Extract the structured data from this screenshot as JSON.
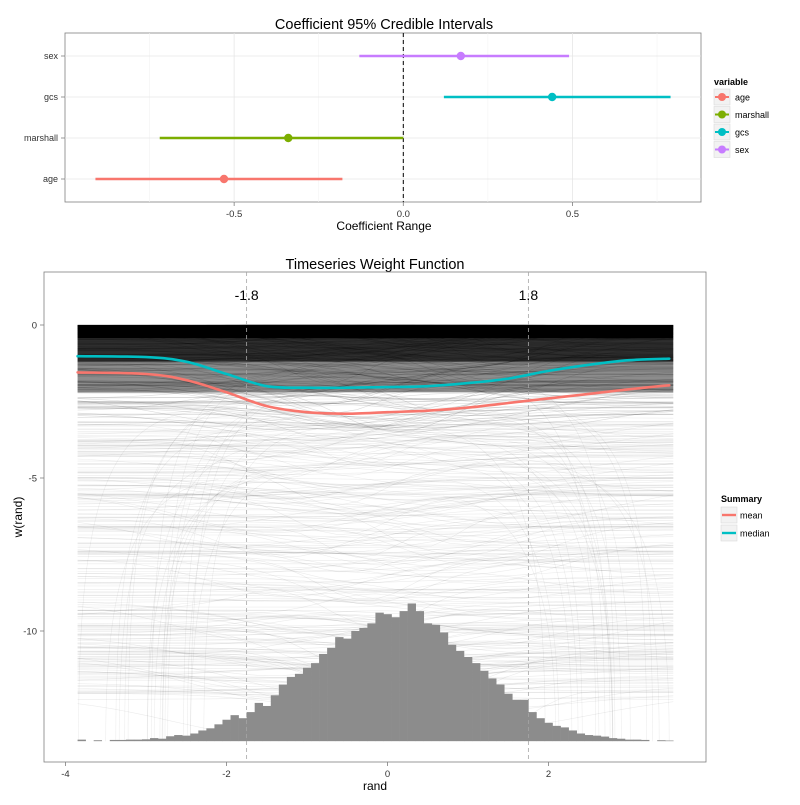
{
  "charts": [
    {
      "type": "errorbar",
      "title": "Coefficient 95% Credible Intervals",
      "xlabel": "Coefficient Range",
      "ylabel": "",
      "xlim": [
        -1.0,
        0.88
      ],
      "xticks": [
        -0.5,
        0.0,
        0.5
      ],
      "xtick_labels": [
        "-0.5",
        "0.0",
        "0.5"
      ],
      "reference_line_x": 0,
      "categories": [
        "age",
        "marshall",
        "gcs",
        "sex"
      ],
      "intervals": [
        {
          "name": "age",
          "low": -0.91,
          "estimate": -0.53,
          "high": -0.18
        },
        {
          "name": "marshall",
          "low": -0.72,
          "estimate": -0.34,
          "high": 0.0
        },
        {
          "name": "gcs",
          "low": 0.12,
          "estimate": 0.44,
          "high": 0.79
        },
        {
          "name": "sex",
          "low": -0.13,
          "estimate": 0.17,
          "high": 0.49
        }
      ],
      "legend": {
        "title": "variable",
        "position": "right",
        "entries": [
          "age",
          "marshall",
          "gcs",
          "sex"
        ]
      },
      "colors": {
        "age": "#F8766D",
        "marshall": "#7CAE00",
        "gcs": "#00BFC4",
        "sex": "#C77CFF"
      },
      "grid": true
    },
    {
      "type": "line+histogram",
      "title": "Timeseries Weight Function",
      "xlabel": "rand",
      "ylabel": "w(rand)",
      "xlim": [
        -4.0,
        4.0
      ],
      "ylim": [
        -13.85,
        1.05
      ],
      "xticks": [
        -4,
        -2,
        0,
        2
      ],
      "xtick_labels": [
        "-4",
        "-2",
        "0",
        "2"
      ],
      "yticks": [
        0,
        -5,
        -10
      ],
      "ytick_labels": [
        "0",
        "-5",
        "-10"
      ],
      "vlines": [
        {
          "x": -1.75,
          "label": "-1.8"
        },
        {
          "x": 1.75,
          "label": "1.8"
        }
      ],
      "series": [
        {
          "name": "mean",
          "color": "#F8766D",
          "x": [
            -3.85,
            -3.0,
            -2.5,
            -2.0,
            -1.5,
            -1.0,
            -0.5,
            0.0,
            0.5,
            1.0,
            1.5,
            2.0,
            2.5,
            3.0,
            3.5
          ],
          "y": [
            -1.55,
            -1.6,
            -1.8,
            -2.2,
            -2.65,
            -2.85,
            -2.9,
            -2.85,
            -2.8,
            -2.7,
            -2.55,
            -2.4,
            -2.25,
            -2.1,
            -1.97
          ]
        },
        {
          "name": "median",
          "color": "#00BFC4",
          "x": [
            -3.85,
            -3.0,
            -2.5,
            -2.0,
            -1.5,
            -1.0,
            -0.5,
            0.0,
            0.5,
            1.0,
            1.5,
            2.0,
            2.5,
            3.0,
            3.5
          ],
          "y": [
            -1.02,
            -1.05,
            -1.2,
            -1.6,
            -2.0,
            -2.05,
            -2.05,
            -2.03,
            -2.0,
            -1.9,
            -1.75,
            -1.5,
            -1.3,
            -1.15,
            -1.1
          ]
        }
      ],
      "histogram": {
        "bin_width": 0.1,
        "bins": [
          {
            "x0": -3.85,
            "h": 0.05
          },
          {
            "x0": -3.65,
            "h": 0.03
          },
          {
            "x0": -3.45,
            "h": 0.04
          },
          {
            "x0": -3.35,
            "h": 0.04
          },
          {
            "x0": -3.25,
            "h": 0.05
          },
          {
            "x0": -3.15,
            "h": 0.05
          },
          {
            "x0": -3.05,
            "h": 0.06
          },
          {
            "x0": -2.95,
            "h": 0.1
          },
          {
            "x0": -2.85,
            "h": 0.08
          },
          {
            "x0": -2.75,
            "h": 0.16
          },
          {
            "x0": -2.65,
            "h": 0.2
          },
          {
            "x0": -2.55,
            "h": 0.18
          },
          {
            "x0": -2.45,
            "h": 0.25
          },
          {
            "x0": -2.35,
            "h": 0.35
          },
          {
            "x0": -2.25,
            "h": 0.42
          },
          {
            "x0": -2.15,
            "h": 0.55
          },
          {
            "x0": -2.05,
            "h": 0.7
          },
          {
            "x0": -1.95,
            "h": 0.85
          },
          {
            "x0": -1.85,
            "h": 0.75
          },
          {
            "x0": -1.75,
            "h": 0.95
          },
          {
            "x0": -1.65,
            "h": 1.25
          },
          {
            "x0": -1.55,
            "h": 1.15
          },
          {
            "x0": -1.45,
            "h": 1.5
          },
          {
            "x0": -1.35,
            "h": 1.85
          },
          {
            "x0": -1.25,
            "h": 2.1
          },
          {
            "x0": -1.15,
            "h": 2.2
          },
          {
            "x0": -1.05,
            "h": 2.4
          },
          {
            "x0": -0.95,
            "h": 2.55
          },
          {
            "x0": -0.85,
            "h": 2.85
          },
          {
            "x0": -0.75,
            "h": 3.05
          },
          {
            "x0": -0.65,
            "h": 3.4
          },
          {
            "x0": -0.55,
            "h": 3.35
          },
          {
            "x0": -0.45,
            "h": 3.6
          },
          {
            "x0": -0.35,
            "h": 3.7
          },
          {
            "x0": -0.25,
            "h": 3.85
          },
          {
            "x0": -0.15,
            "h": 4.2
          },
          {
            "x0": -0.05,
            "h": 4.15
          },
          {
            "x0": 0.05,
            "h": 4.05
          },
          {
            "x0": 0.15,
            "h": 4.25
          },
          {
            "x0": 0.25,
            "h": 4.5
          },
          {
            "x0": 0.35,
            "h": 4.25
          },
          {
            "x0": 0.45,
            "h": 3.85
          },
          {
            "x0": 0.55,
            "h": 3.8
          },
          {
            "x0": 0.65,
            "h": 3.55
          },
          {
            "x0": 0.75,
            "h": 3.15
          },
          {
            "x0": 0.85,
            "h": 2.95
          },
          {
            "x0": 0.95,
            "h": 2.75
          },
          {
            "x0": 1.05,
            "h": 2.55
          },
          {
            "x0": 1.15,
            "h": 2.3
          },
          {
            "x0": 1.25,
            "h": 2.05
          },
          {
            "x0": 1.35,
            "h": 1.85
          },
          {
            "x0": 1.45,
            "h": 1.55
          },
          {
            "x0": 1.55,
            "h": 1.35
          },
          {
            "x0": 1.65,
            "h": 1.35
          },
          {
            "x0": 1.75,
            "h": 0.95
          },
          {
            "x0": 1.85,
            "h": 0.75
          },
          {
            "x0": 1.95,
            "h": 0.6
          },
          {
            "x0": 2.05,
            "h": 0.5
          },
          {
            "x0": 2.15,
            "h": 0.45
          },
          {
            "x0": 2.25,
            "h": 0.35
          },
          {
            "x0": 2.35,
            "h": 0.25
          },
          {
            "x0": 2.45,
            "h": 0.2
          },
          {
            "x0": 2.55,
            "h": 0.18
          },
          {
            "x0": 2.65,
            "h": 0.15
          },
          {
            "x0": 2.75,
            "h": 0.1
          },
          {
            "x0": 2.85,
            "h": 0.08
          },
          {
            "x0": 2.95,
            "h": 0.05
          },
          {
            "x0": 3.05,
            "h": 0.05
          },
          {
            "x0": 3.15,
            "h": 0.04
          },
          {
            "x0": 3.35,
            "h": 0.03
          },
          {
            "x0": 3.45,
            "h": 0.02
          }
        ]
      },
      "legend": {
        "title": "Summary",
        "position": "right",
        "entries": [
          "mean",
          "median"
        ]
      },
      "grid": false
    }
  ]
}
